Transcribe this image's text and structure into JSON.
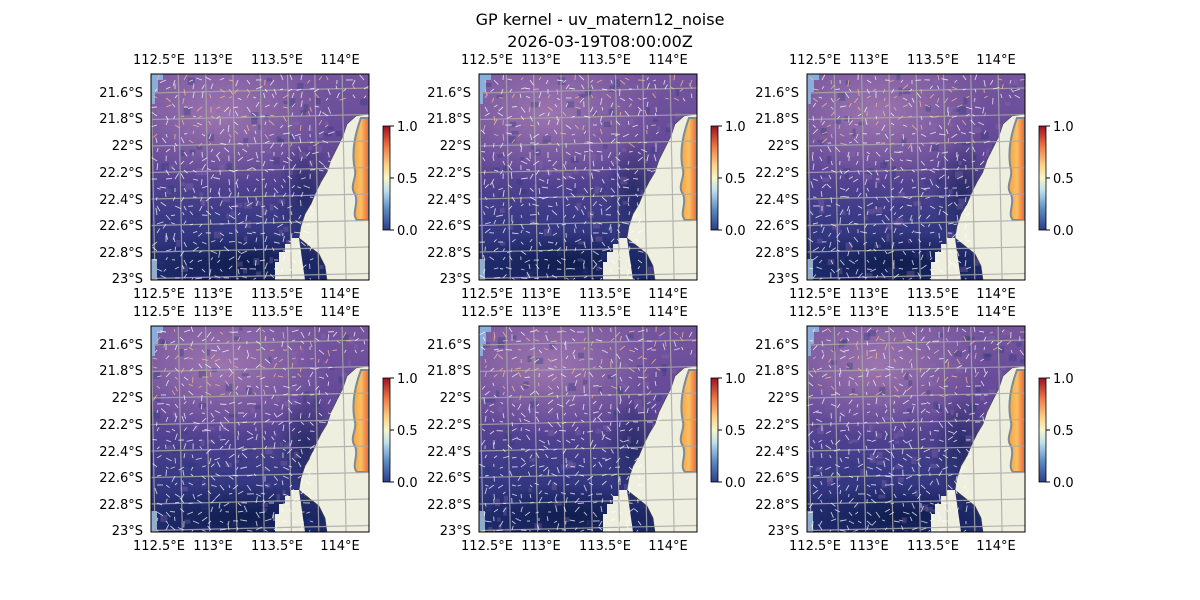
{
  "title_line1": "GP kernel - uv_matern12_noise",
  "title_line2": "2026-03-19T08:00:00Z",
  "chart_data": {
    "type": "heatmap",
    "subtype": "map-with-vector-field",
    "layout": "2x3 grid of identical map panels, each with a vertical colorbar",
    "lon_ticks": [
      "112.5°E",
      "113°E",
      "113.5°E",
      "114°E"
    ],
    "lat_ticks": [
      "21.6°S",
      "21.8°S",
      "22°S",
      "22.2°S",
      "22.4°S",
      "22.6°S",
      "22.8°S",
      "23°S"
    ],
    "xlim": [
      112.3,
      114.15
    ],
    "ylim": [
      -23.0,
      -21.45
    ],
    "colorbar": {
      "ticks": [
        "0.0",
        "0.5",
        "1.0"
      ],
      "range": [
        0,
        1
      ],
      "colormap": "RdYlBu_r"
    },
    "colors": {
      "ocean_low": "#1d2a6e",
      "ocean_mid": "#5a3f8e",
      "ocean_high": "#8a62a8",
      "land": "#efefdf",
      "land_edge": "#7d8a96",
      "gridlines": "#a9a9a9",
      "nodata": "#8aaedc",
      "arrows": "#ffffff"
    },
    "panels": [
      {
        "name": "panel-1",
        "variant": 1
      },
      {
        "name": "panel-2",
        "variant": 2
      },
      {
        "name": "panel-3",
        "variant": 3
      },
      {
        "name": "panel-4",
        "variant": 4
      },
      {
        "name": "panel-5",
        "variant": 5
      },
      {
        "name": "panel-6",
        "variant": 6
      }
    ]
  }
}
